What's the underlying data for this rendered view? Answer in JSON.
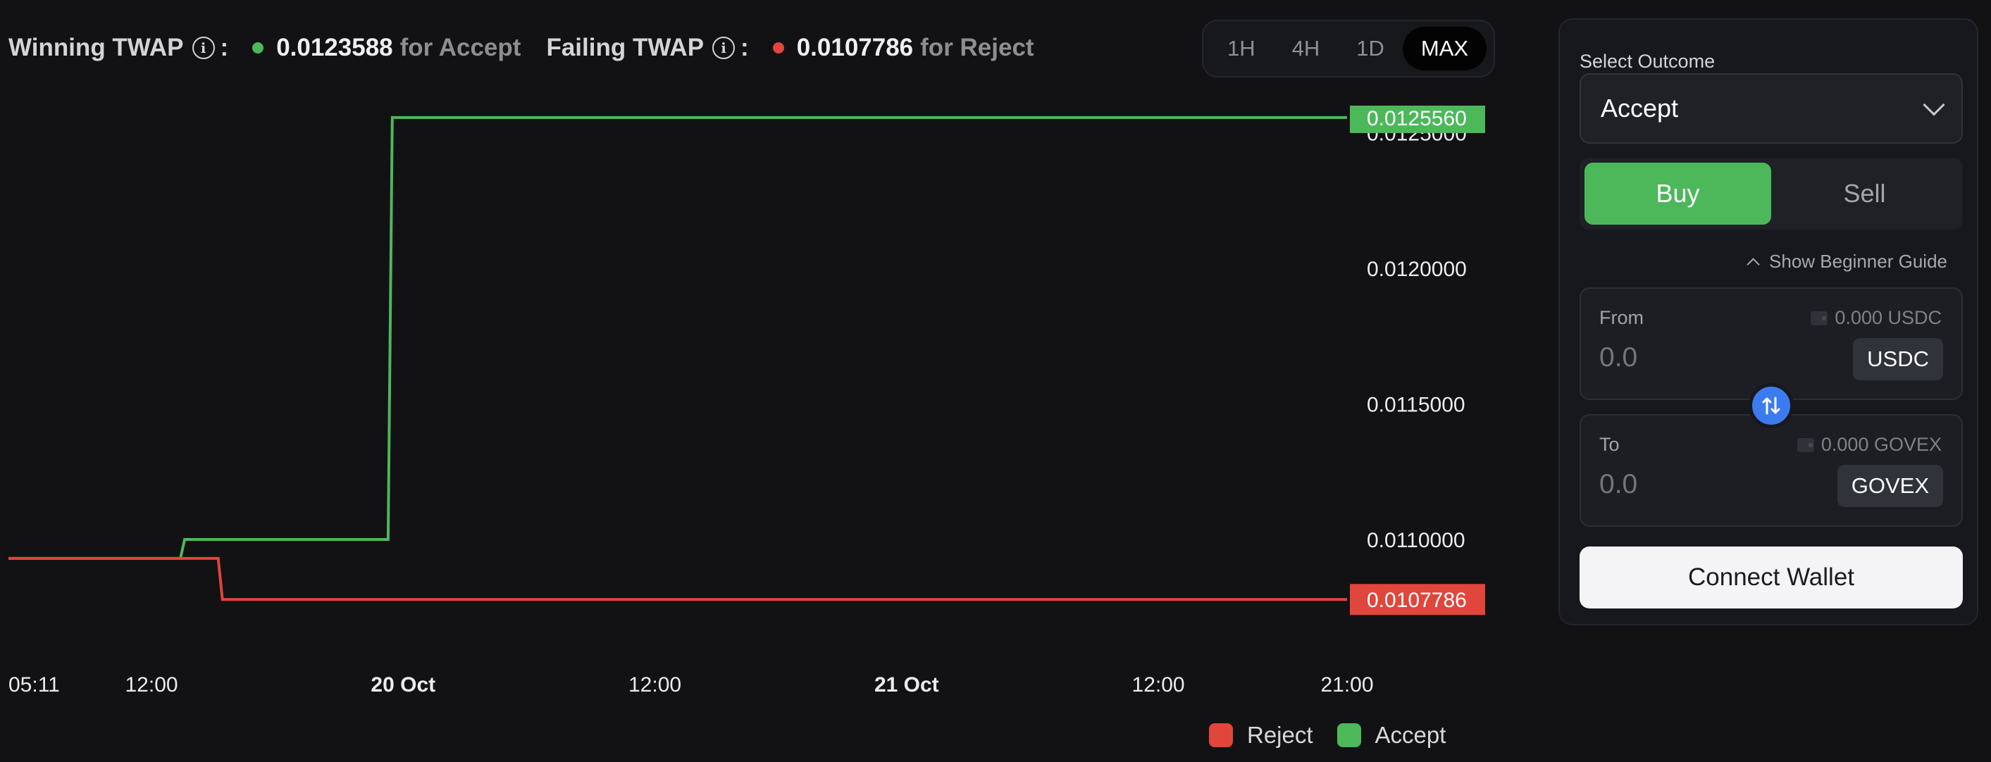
{
  "header": {
    "winning_label": "Winning TWAP",
    "winning_value": "0.0123588",
    "winning_suffix": "for Accept",
    "failing_label": "Failing TWAP",
    "failing_value": "0.0107786",
    "failing_suffix": "for Reject",
    "info_glyph": "i",
    "colon": ":"
  },
  "range_tabs": [
    {
      "label": "1H",
      "active": false
    },
    {
      "label": "4H",
      "active": false
    },
    {
      "label": "1D",
      "active": false
    },
    {
      "label": "MAX",
      "active": true
    }
  ],
  "colors": {
    "accept": "#4cb85a",
    "reject": "#e0463c",
    "swap": "#3b7bf0",
    "background": "#121214"
  },
  "chart_data": {
    "type": "line",
    "step": true,
    "title": "",
    "xlabel": "",
    "ylabel": "",
    "ylim": [
      0.0106,
      0.0126
    ],
    "x_ticks": [
      {
        "label": "05:11",
        "t": 0.0,
        "bold": false
      },
      {
        "label": "12:00",
        "t": 6.82,
        "bold": false
      },
      {
        "label": "20 Oct",
        "t": 18.82,
        "bold": true
      },
      {
        "label": "12:00",
        "t": 30.82,
        "bold": false
      },
      {
        "label": "21 Oct",
        "t": 42.82,
        "bold": true
      },
      {
        "label": "12:00",
        "t": 54.82,
        "bold": false
      },
      {
        "label": "21:00",
        "t": 63.82,
        "bold": false
      }
    ],
    "x_range": [
      0,
      63.82
    ],
    "y_ticks": [
      "0.0125000",
      "0.0120000",
      "0.0115000",
      "0.0110000"
    ],
    "y_tick_values": [
      0.0125,
      0.012,
      0.0115,
      0.011
    ],
    "series": [
      {
        "name": "Accept",
        "color": "#4cb85a",
        "points": [
          [
            0,
            0.01093
          ],
          [
            8.2,
            0.01093
          ],
          [
            8.4,
            0.011
          ],
          [
            18.1,
            0.011
          ],
          [
            18.3,
            0.012556
          ],
          [
            63.82,
            0.012556
          ]
        ],
        "last_label": "0.0125560"
      },
      {
        "name": "Reject",
        "color": "#e0463c",
        "points": [
          [
            0,
            0.01093
          ],
          [
            10.0,
            0.01093
          ],
          [
            10.2,
            0.0107786
          ],
          [
            63.82,
            0.0107786
          ]
        ],
        "last_label": "0.0107786"
      }
    ],
    "legend": [
      {
        "name": "Reject",
        "color": "#e0463c"
      },
      {
        "name": "Accept",
        "color": "#4cb85a"
      }
    ],
    "legend_position": "bottom-right"
  },
  "panel": {
    "select_label": "Select Outcome",
    "select_value": "Accept",
    "buy_label": "Buy",
    "sell_label": "Sell",
    "guide_label": "Show Beginner Guide",
    "from": {
      "label": "From",
      "balance": "0.000 USDC",
      "amount_placeholder": "0.0",
      "token": "USDC"
    },
    "to": {
      "label": "To",
      "balance": "0.000 GOVEX",
      "amount_placeholder": "0.0",
      "token": "GOVEX"
    },
    "connect_label": "Connect Wallet"
  }
}
